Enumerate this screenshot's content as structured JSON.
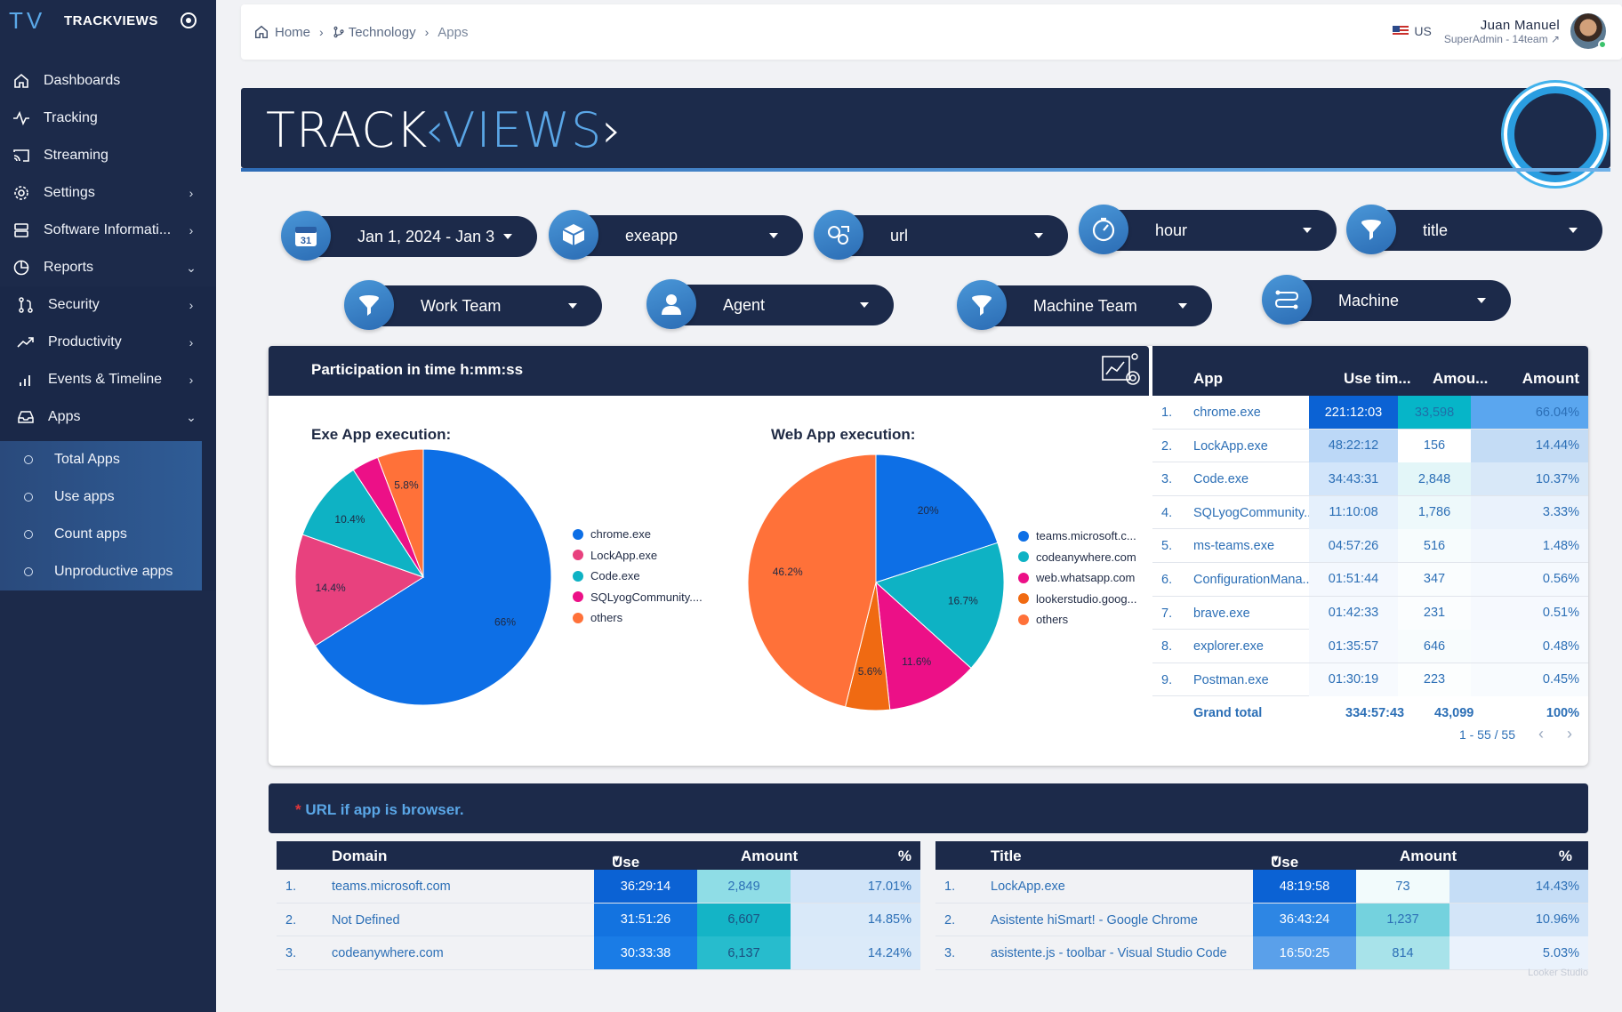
{
  "sidebar": {
    "logo": "TV",
    "brand": "TRACKVIEWS",
    "items": [
      {
        "label": "Dashboards",
        "icon": "home-icon"
      },
      {
        "label": "Tracking",
        "icon": "activity-icon"
      },
      {
        "label": "Streaming",
        "icon": "cast-icon"
      },
      {
        "label": "Settings",
        "icon": "gear-icon"
      },
      {
        "label": "Software Informati...",
        "icon": "database-icon"
      },
      {
        "label": "Reports",
        "icon": "pie-chart-icon"
      },
      {
        "label": "Security",
        "icon": "git-pull-icon"
      },
      {
        "label": "Productivity",
        "icon": "trending-up-icon"
      },
      {
        "label": "Events & Timeline",
        "icon": "bar-chart-icon"
      },
      {
        "label": "Apps",
        "icon": "inbox-icon"
      }
    ],
    "subitems": [
      "Total Apps",
      "Use apps",
      "Count apps",
      "Unproductive apps"
    ]
  },
  "topbar": {
    "breadcrumb": {
      "home": "Home",
      "technology": "Technology",
      "apps": "Apps"
    },
    "lang": "US",
    "user_name": "Juan Manuel",
    "user_role": "SuperAdmin - 14team"
  },
  "banner": {
    "logo_a": "TRACK",
    "logo_b": "VIEWS"
  },
  "filters": {
    "date": "Jan 1, 2024 - Jan 3",
    "exeapp": "exeapp",
    "url": "url",
    "hour": "hour",
    "title": "title",
    "work_team": "Work Team",
    "agent": "Agent",
    "machine_team": "Machine Team",
    "machine": "Machine",
    "date_day": "31"
  },
  "participation": {
    "title": "Participation in time h:mm:ss",
    "exe_title": "Exe App execution:",
    "web_title": "Web App execution:"
  },
  "colors": {
    "blue": "#0d6fe6",
    "pink": "#e8417e",
    "teal": "#0eb2c4",
    "magenta": "#ec1087",
    "orange": "#ff7139",
    "darkorange": "#f06a12",
    "navy": "#1c2a4a"
  },
  "chart_data": [
    {
      "type": "pie",
      "title": "Exe App execution:",
      "categories": [
        "chrome.exe",
        "LockApp.exe",
        "Code.exe",
        "SQLyogCommunity....",
        "others"
      ],
      "values": [
        66,
        14.4,
        10.4,
        3.4,
        5.8
      ],
      "labels": [
        "66%",
        "14.4%",
        "10.4%",
        "",
        "5.8%"
      ],
      "colors": [
        "#0d6fe6",
        "#e8417e",
        "#0eb2c4",
        "#ec1087",
        "#ff7139"
      ],
      "legend": "right"
    },
    {
      "type": "pie",
      "title": "Web App execution:",
      "categories": [
        "teams.microsoft.c...",
        "codeanywhere.com",
        "web.whatsapp.com",
        "lookerstudio.goog...",
        "others"
      ],
      "values": [
        20,
        16.7,
        11.6,
        5.6,
        46.2
      ],
      "labels": [
        "20%",
        "16.7%",
        "11.6%",
        "5.6%",
        "46.2%"
      ],
      "colors": [
        "#0d6fe6",
        "#0eb2c4",
        "#ec1087",
        "#f06a12",
        "#ff7139"
      ],
      "legend": "right"
    }
  ],
  "app_table": {
    "headers": {
      "app": "App",
      "use": "Use tim...",
      "amount": "Amou...",
      "pct": "Amount"
    },
    "rows": [
      {
        "n": "1.",
        "app": "chrome.exe",
        "use": "221:12:03",
        "amount": "33,598",
        "pct": "66.04%"
      },
      {
        "n": "2.",
        "app": "LockApp.exe",
        "use": "48:22:12",
        "amount": "156",
        "pct": "14.44%"
      },
      {
        "n": "3.",
        "app": "Code.exe",
        "use": "34:43:31",
        "amount": "2,848",
        "pct": "10.37%"
      },
      {
        "n": "4.",
        "app": "SQLyogCommunity....",
        "use": "11:10:08",
        "amount": "1,786",
        "pct": "3.33%"
      },
      {
        "n": "5.",
        "app": "ms-teams.exe",
        "use": "04:57:26",
        "amount": "516",
        "pct": "1.48%"
      },
      {
        "n": "6.",
        "app": "ConfigurationMana...",
        "use": "01:51:44",
        "amount": "347",
        "pct": "0.56%"
      },
      {
        "n": "7.",
        "app": "brave.exe",
        "use": "01:42:33",
        "amount": "231",
        "pct": "0.51%"
      },
      {
        "n": "8.",
        "app": "explorer.exe",
        "use": "01:35:57",
        "amount": "646",
        "pct": "0.48%"
      },
      {
        "n": "9.",
        "app": "Postman.exe",
        "use": "01:30:19",
        "amount": "223",
        "pct": "0.45%"
      }
    ],
    "grand": {
      "label": "Grand total",
      "use": "334:57:43",
      "amount": "43,099",
      "pct": "100%"
    },
    "pager": "1 - 55 / 55"
  },
  "url_section": {
    "star": "*",
    "title": "URL if app is browser."
  },
  "domain_table": {
    "headers": {
      "name": "Domain",
      "use": "Use time",
      "amount": "Amount",
      "pct": "%"
    },
    "rows": [
      {
        "n": "1.",
        "name": "teams.microsoft.com",
        "use": "36:29:14",
        "amount": "2,849",
        "pct": "17.01%"
      },
      {
        "n": "2.",
        "name": "Not Defined",
        "use": "31:51:26",
        "amount": "6,607",
        "pct": "14.85%"
      },
      {
        "n": "3.",
        "name": "codeanywhere.com",
        "use": "30:33:38",
        "amount": "6,137",
        "pct": "14.24%"
      }
    ]
  },
  "title_table": {
    "headers": {
      "name": "Title",
      "use": "Use time",
      "amount": "Amount",
      "pct": "%"
    },
    "rows": [
      {
        "n": "1.",
        "name": "LockApp.exe",
        "use": "48:19:58",
        "amount": "73",
        "pct": "14.43%"
      },
      {
        "n": "2.",
        "name": "Asistente hiSmart! - Google Chrome",
        "use": "36:43:24",
        "amount": "1,237",
        "pct": "10.96%"
      },
      {
        "n": "3.",
        "name": "asistente.js - toolbar - Visual Studio Code",
        "use": "16:50:25",
        "amount": "814",
        "pct": "5.03%"
      }
    ]
  },
  "watermark": "Looker Studio"
}
